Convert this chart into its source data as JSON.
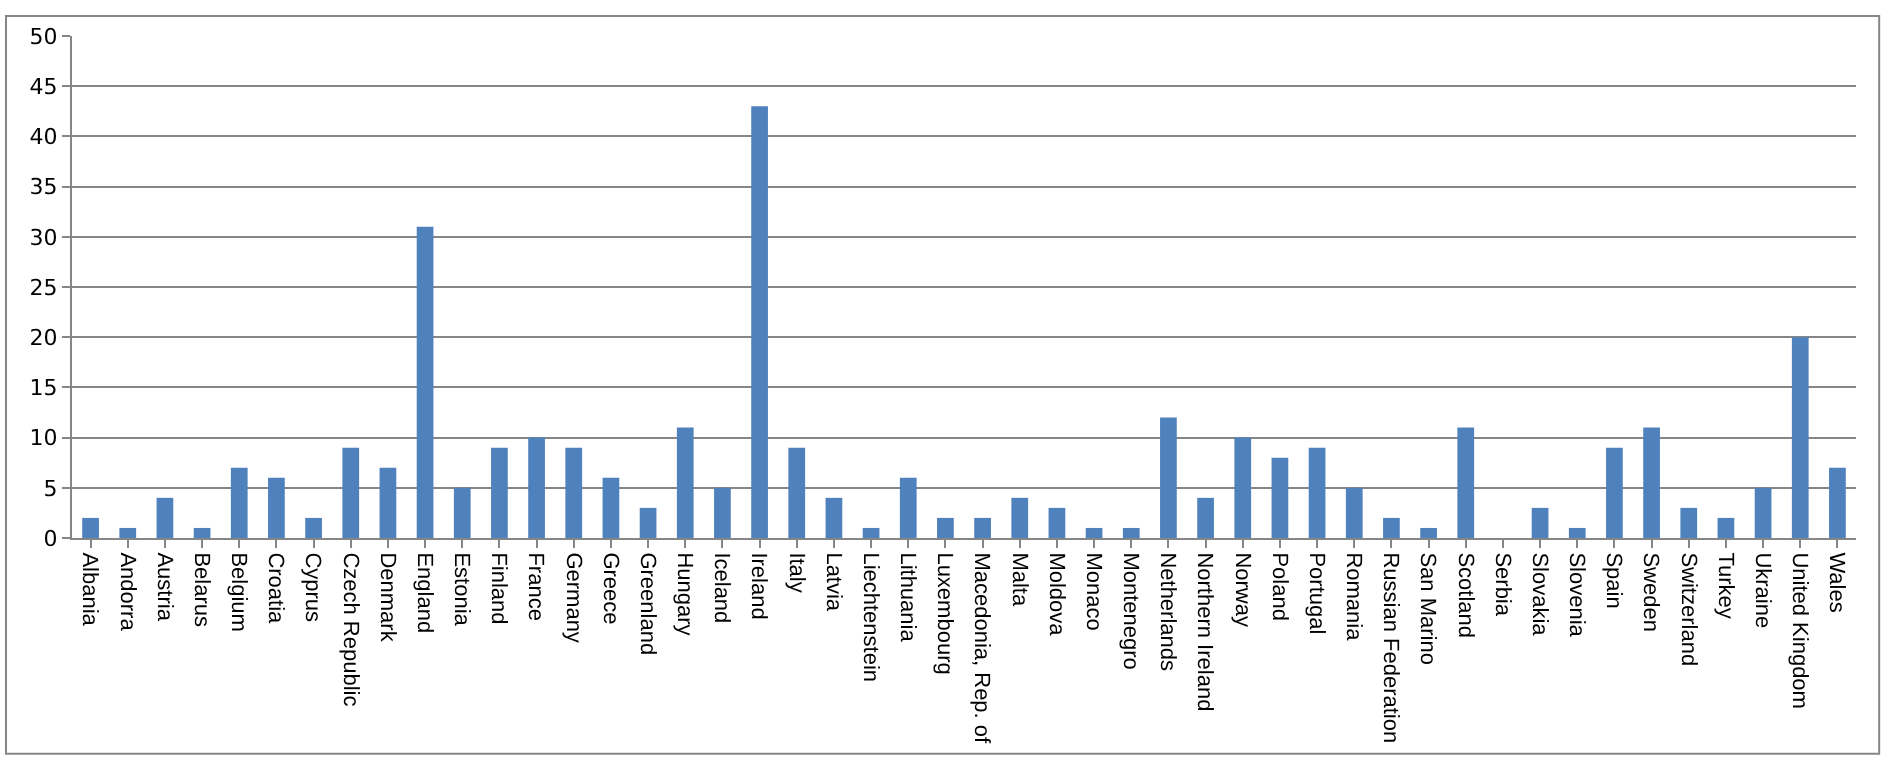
{
  "chart_data": {
    "type": "bar",
    "categories": [
      "Albania",
      "Andorra",
      "Austria",
      "Belarus",
      "Belgium",
      "Croatia",
      "Cyprus",
      "Czech Republic",
      "Denmark",
      "England",
      "Estonia",
      "Finland",
      "France",
      "Germany",
      "Greece",
      "Greenland",
      "Hungary",
      "Iceland",
      "Ireland",
      "Italy",
      "Latvia",
      "Liechtenstein",
      "Lithuania",
      "Luxembourg",
      "Macedonia, Rep. of",
      "Malta",
      "Moldova",
      "Monaco",
      "Montenegro",
      "Netherlands",
      "Northern Ireland",
      "Norway",
      "Poland",
      "Portugal",
      "Romania",
      "Russian Federation",
      "San Marino",
      "Scotland",
      "Serbia",
      "Slovakia",
      "Slovenia",
      "Spain",
      "Sweden",
      "Switzerland",
      "Turkey",
      "Ukraine",
      "United Kingdom",
      "Wales"
    ],
    "values": [
      2,
      1,
      4,
      1,
      7,
      6,
      2,
      9,
      7,
      31,
      5,
      9,
      10,
      9,
      6,
      3,
      11,
      5,
      43,
      9,
      4,
      1,
      6,
      2,
      2,
      4,
      3,
      1,
      1,
      12,
      4,
      10,
      8,
      9,
      5,
      2,
      1,
      11,
      0,
      3,
      1,
      9,
      11,
      3,
      2,
      5,
      20,
      7
    ],
    "color": "#4f81bd",
    "ylim": [
      0,
      50
    ],
    "yticks": [
      0,
      5,
      10,
      15,
      20,
      25,
      30,
      35,
      40,
      45,
      50
    ],
    "grid": "y"
  }
}
